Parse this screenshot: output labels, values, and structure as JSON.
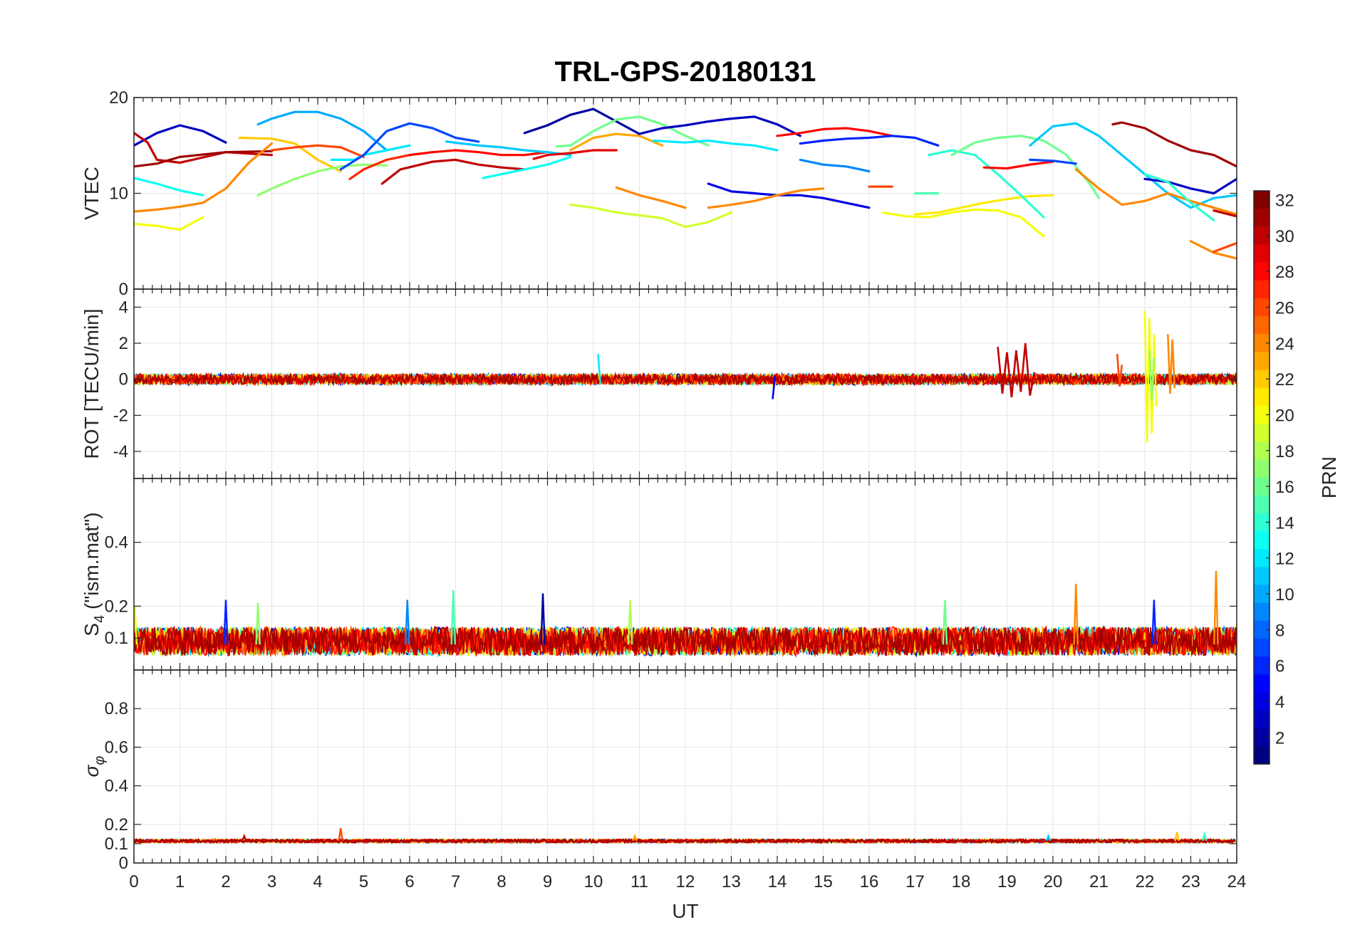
{
  "chart_data": [
    {
      "type": "line",
      "title": "TRL-GPS-20180131",
      "ylabel": "VTEC",
      "xlim": [
        0,
        24
      ],
      "ylim": [
        0,
        20
      ],
      "yticks": [
        0,
        10,
        20
      ],
      "grid": true,
      "series": [
        {
          "prn": 3,
          "x": [
            0,
            0.5,
            1,
            1.5,
            2
          ],
          "y": [
            15,
            16.3,
            17.1,
            16.5,
            15.3
          ]
        },
        {
          "prn": 30,
          "x": [
            0,
            0.3,
            0.5,
            1,
            2,
            3
          ],
          "y": [
            16.3,
            15.3,
            13.5,
            13.2,
            14.3,
            14
          ]
        },
        {
          "prn": 31,
          "x": [
            0,
            0.5,
            1,
            2,
            3
          ],
          "y": [
            12.8,
            13.1,
            13.8,
            14.3,
            14.4
          ]
        },
        {
          "prn": 24,
          "x": [
            0,
            0.5,
            1,
            1.5,
            2,
            2.5,
            3
          ],
          "y": [
            8.1,
            8.3,
            8.6,
            9,
            10.5,
            13.2,
            15.2
          ]
        },
        {
          "prn": 20,
          "x": [
            0,
            0.5,
            1,
            1.5
          ],
          "y": [
            6.8,
            6.6,
            6.2,
            7.5
          ]
        },
        {
          "prn": 13,
          "x": [
            0,
            0.5,
            1,
            1.5
          ],
          "y": [
            11.6,
            11,
            10.3,
            9.8
          ]
        },
        {
          "prn": 10,
          "x": [
            2.7,
            3,
            3.5,
            4,
            4.5,
            5,
            5.5
          ],
          "y": [
            17.2,
            17.8,
            18.5,
            18.5,
            17.8,
            16.5,
            14.5
          ]
        },
        {
          "prn": 22,
          "x": [
            2.3,
            3,
            3.5,
            4,
            4.5
          ],
          "y": [
            15.8,
            15.7,
            15.2,
            13.5,
            12.3
          ]
        },
        {
          "prn": 17,
          "x": [
            2.7,
            3,
            3.5,
            4,
            4.5,
            5,
            5.5
          ],
          "y": [
            9.8,
            10.5,
            11.5,
            12.3,
            12.8,
            13,
            12.9
          ]
        },
        {
          "prn": 26,
          "x": [
            3,
            3.5,
            4,
            4.5,
            5
          ],
          "y": [
            14.5,
            14.8,
            15,
            14.8,
            13.8
          ]
        },
        {
          "prn": 12,
          "x": [
            4.3,
            4.8,
            5,
            5.5,
            6
          ],
          "y": [
            13.5,
            13.5,
            14,
            14.5,
            15
          ]
        },
        {
          "prn": 7,
          "x": [
            4.5,
            5,
            5.5,
            6,
            6.5,
            7,
            7.5
          ],
          "y": [
            12.5,
            14,
            16.5,
            17.3,
            16.8,
            15.8,
            15.4
          ]
        },
        {
          "prn": 27,
          "x": [
            4.7,
            5,
            5.5,
            6,
            6.5
          ],
          "y": [
            11.5,
            12.5,
            13.5,
            14,
            14.3
          ]
        },
        {
          "prn": 30,
          "x": [
            5.4,
            5.8,
            6.5,
            7,
            7.5,
            8,
            8.5
          ],
          "y": [
            11,
            12.5,
            13.3,
            13.5,
            13,
            12.7,
            12.5
          ]
        },
        {
          "prn": 28,
          "x": [
            6,
            6.5,
            7,
            7.5,
            8,
            8.5,
            9
          ],
          "y": [
            14,
            14.3,
            14.5,
            14.3,
            14,
            14,
            14.3
          ]
        },
        {
          "prn": 11,
          "x": [
            6.8,
            7.5,
            8,
            8.5,
            9,
            9.5
          ],
          "y": [
            15.4,
            15,
            14.8,
            14.5,
            14.3,
            14
          ]
        },
        {
          "prn": 2,
          "x": [
            8.5,
            9,
            9.5,
            10,
            10.5,
            11
          ],
          "y": [
            16.3,
            17.1,
            18.2,
            18.8,
            17.5,
            16.2
          ]
        },
        {
          "prn": 13,
          "x": [
            7.6,
            8,
            8.5,
            9,
            9.5
          ],
          "y": [
            11.6,
            12,
            12.5,
            13,
            13.8
          ]
        },
        {
          "prn": 29,
          "x": [
            8.7,
            9,
            9.5,
            10,
            10.5
          ],
          "y": [
            13.6,
            14,
            14.2,
            14.5,
            14.5
          ]
        },
        {
          "prn": 16,
          "x": [
            9.2,
            9.5,
            10,
            10.5,
            11,
            11.5,
            12,
            12.5
          ],
          "y": [
            14.9,
            15,
            16.5,
            17.7,
            18,
            17.2,
            16,
            15
          ]
        },
        {
          "prn": 23,
          "x": [
            9.5,
            10,
            10.5,
            11,
            11.5
          ],
          "y": [
            14.5,
            15.8,
            16.2,
            16,
            15
          ]
        },
        {
          "prn": 19,
          "x": [
            9.5,
            10,
            10.5,
            11,
            11.5,
            12,
            12.5,
            13
          ],
          "y": [
            8.8,
            8.5,
            8,
            7.7,
            7.4,
            6.5,
            7,
            8
          ]
        },
        {
          "prn": 24,
          "x": [
            10.5,
            11,
            11.5,
            12
          ],
          "y": [
            10.6,
            9.8,
            9.2,
            8.5
          ]
        },
        {
          "prn": 3,
          "x": [
            11,
            11.5,
            12,
            12.5,
            13,
            13.5,
            14,
            14.5
          ],
          "y": [
            16.2,
            16.8,
            17.1,
            17.5,
            17.8,
            18,
            17.2,
            16
          ]
        },
        {
          "prn": 12,
          "x": [
            11.3,
            12,
            12.5,
            13,
            13.5,
            14
          ],
          "y": [
            15.5,
            15.3,
            15.5,
            15.2,
            15,
            14.5
          ]
        },
        {
          "prn": 4,
          "x": [
            12.5,
            13,
            13.5,
            14,
            14.5,
            15,
            15.5,
            16
          ],
          "y": [
            11,
            10.2,
            10,
            9.8,
            9.8,
            9.5,
            9,
            8.5
          ]
        },
        {
          "prn": 24,
          "x": [
            12.5,
            13,
            13.5,
            14,
            14.5,
            15
          ],
          "y": [
            8.5,
            8.8,
            9.2,
            9.8,
            10.3,
            10.5
          ]
        },
        {
          "prn": 28,
          "x": [
            14,
            14.5,
            15,
            15.5,
            16,
            16.5
          ],
          "y": [
            16,
            16.3,
            16.7,
            16.8,
            16.5,
            16
          ]
        },
        {
          "prn": 6,
          "x": [
            14.5,
            15,
            15.5,
            16,
            16.5,
            17,
            17.5
          ],
          "y": [
            15.2,
            15.5,
            15.7,
            15.8,
            16,
            15.8,
            15
          ]
        },
        {
          "prn": 9,
          "x": [
            14.5,
            15,
            15.5,
            16
          ],
          "y": [
            13.5,
            13,
            12.8,
            12.3
          ]
        },
        {
          "prn": 26,
          "x": [
            16,
            16.5
          ],
          "y": [
            10.7,
            10.7
          ]
        },
        {
          "prn": 15,
          "x": [
            17,
            17.5
          ],
          "y": [
            10,
            10
          ]
        },
        {
          "prn": 20,
          "x": [
            16.3,
            16.8,
            17.3,
            17.8,
            18.3,
            18.8,
            19.3,
            19.8
          ],
          "y": [
            8,
            7.6,
            7.5,
            8,
            8.3,
            8.2,
            7.5,
            5.5
          ]
        },
        {
          "prn": 21,
          "x": [
            17,
            17.5,
            18,
            18.5,
            19,
            19.5,
            20
          ],
          "y": [
            7.8,
            8,
            8.5,
            9,
            9.4,
            9.7,
            9.8
          ]
        },
        {
          "prn": 14,
          "x": [
            17.3,
            17.8,
            18.3,
            18.8,
            19.3,
            19.8
          ],
          "y": [
            14,
            14.5,
            14,
            12,
            9.8,
            7.5
          ]
        },
        {
          "prn": 16,
          "x": [
            17.8,
            18.3,
            18.8,
            19.3,
            19.8,
            20.3,
            20.8,
            21
          ],
          "y": [
            14,
            15.3,
            15.8,
            16,
            15.5,
            14,
            11,
            9.5
          ]
        },
        {
          "prn": 28,
          "x": [
            18.5,
            19,
            19.5,
            20
          ],
          "y": [
            12.7,
            12.6,
            13,
            13.3
          ]
        },
        {
          "prn": 11,
          "x": [
            19.5,
            20,
            20.5,
            21,
            21.5,
            22,
            22.5,
            23,
            23.5,
            24
          ],
          "y": [
            15,
            17,
            17.3,
            16,
            14,
            12,
            10,
            8.5,
            9.5,
            9.8
          ]
        },
        {
          "prn": 7,
          "x": [
            19.5,
            20,
            20.5
          ],
          "y": [
            13.5,
            13.4,
            13.1
          ]
        },
        {
          "prn": 24,
          "x": [
            20.5,
            21,
            21.5,
            22,
            22.5,
            23,
            23.5,
            24
          ],
          "y": [
            12.5,
            10.5,
            8.8,
            9.2,
            10,
            9.2,
            8.5,
            7.8
          ]
        },
        {
          "prn": 31,
          "x": [
            21.3,
            21.5,
            22,
            22.5,
            23,
            23.5,
            24
          ],
          "y": [
            17.2,
            17.4,
            16.8,
            15.5,
            14.5,
            14,
            12.8
          ]
        },
        {
          "prn": 3,
          "x": [
            22,
            22.5,
            23,
            23.5,
            24
          ],
          "y": [
            11.5,
            11.2,
            10.5,
            10,
            11.5
          ]
        },
        {
          "prn": 14,
          "x": [
            22,
            22.5,
            23,
            23.5
          ],
          "y": [
            12,
            11.2,
            9,
            7.2
          ]
        },
        {
          "prn": 24,
          "x": [
            23,
            23.5,
            24
          ],
          "y": [
            5,
            3.8,
            3.2
          ]
        },
        {
          "prn": 26,
          "x": [
            23.5,
            24
          ],
          "y": [
            3.9,
            4.8
          ]
        },
        {
          "prn": 30,
          "x": [
            23.5,
            24
          ],
          "y": [
            8.2,
            7.6
          ]
        }
      ]
    },
    {
      "type": "line",
      "ylabel": "ROT [TECU/min]",
      "xlim": [
        0,
        24
      ],
      "ylim": [
        -5.5,
        5
      ],
      "yticks": [
        -4,
        -2,
        0,
        2,
        4
      ],
      "grid": true,
      "series": [
        {
          "prn": 30,
          "x": [
            18.8,
            18.9,
            19,
            19.1,
            19.2,
            19.3,
            19.4,
            19.5,
            19.6
          ],
          "y": [
            1.8,
            -0.8,
            1.5,
            -1,
            1.6,
            -0.7,
            2,
            -0.9,
            0.4
          ]
        },
        {
          "prn": 20,
          "x": [
            22,
            22.05,
            22.1,
            22.15,
            22.2,
            22.25
          ],
          "y": [
            3.8,
            -3.5,
            3.4,
            -3,
            2.5,
            -1.5
          ]
        },
        {
          "prn": 24,
          "x": [
            22.5,
            22.55,
            22.6,
            22.65
          ],
          "y": [
            2.5,
            -0.8,
            2.2,
            -0.5
          ]
        },
        {
          "prn": 17,
          "x": [
            22.1,
            22.15,
            22.2
          ],
          "y": [
            1.6,
            -1.2,
            1.2
          ]
        },
        {
          "prn": 26,
          "x": [
            21.4,
            21.45,
            21.5
          ],
          "y": [
            1.4,
            -0.4,
            0.8
          ]
        },
        {
          "prn": 12,
          "x": [
            10.1,
            10.15
          ],
          "y": [
            1.4,
            -0.2
          ]
        },
        {
          "prn": 4,
          "x": [
            13.9,
            13.95
          ],
          "y": [
            -1.1,
            0.2
          ]
        }
      ]
    },
    {
      "type": "line",
      "ylabel": "S4 (\"ism.mat\")",
      "ylabel_main": "S",
      "ylabel_sub": "4",
      "ylabel_rest": " (\"ism.mat\")",
      "xlim": [
        0,
        24
      ],
      "ylim": [
        0,
        0.6
      ],
      "yticks": [
        0.1,
        0.2,
        0.4
      ],
      "grid": true,
      "spikes": [
        {
          "prn": 24,
          "x": 23.55,
          "y": 0.31
        },
        {
          "prn": 24,
          "x": 20.5,
          "y": 0.27
        },
        {
          "prn": 15,
          "x": 6.95,
          "y": 0.25
        },
        {
          "prn": 2,
          "x": 8.9,
          "y": 0.24
        },
        {
          "prn": 6,
          "x": 2,
          "y": 0.22
        },
        {
          "prn": 9,
          "x": 5.95,
          "y": 0.22
        },
        {
          "prn": 18,
          "x": 10.8,
          "y": 0.22
        },
        {
          "prn": 16,
          "x": 17.65,
          "y": 0.22
        },
        {
          "prn": 6,
          "x": 22.2,
          "y": 0.22
        },
        {
          "prn": 20,
          "x": 0.02,
          "y": 0.2
        },
        {
          "prn": 17,
          "x": 2.7,
          "y": 0.21
        }
      ]
    },
    {
      "type": "line",
      "ylabel": "σφ",
      "ylabel_main": "σ",
      "ylabel_sub": "φ",
      "xlabel": "UT",
      "xlim": [
        0,
        24
      ],
      "ylim": [
        0,
        1
      ],
      "yticks": [
        0,
        0.1,
        0.2,
        0.4,
        0.6,
        0.8
      ],
      "xticks": [
        0,
        1,
        2,
        3,
        4,
        5,
        6,
        7,
        8,
        9,
        10,
        11,
        12,
        13,
        14,
        15,
        16,
        17,
        18,
        19,
        20,
        21,
        22,
        23,
        24
      ],
      "grid": true,
      "spikes": [
        {
          "prn": 26,
          "x": 4.5,
          "y": 0.18
        },
        {
          "prn": 30,
          "x": 2.4,
          "y": 0.14
        },
        {
          "prn": 23,
          "x": 10.9,
          "y": 0.14
        },
        {
          "prn": 11,
          "x": 19.9,
          "y": 0.14
        },
        {
          "prn": 22,
          "x": 22.7,
          "y": 0.16
        },
        {
          "prn": 14,
          "x": 23.3,
          "y": 0.15
        }
      ]
    }
  ],
  "colorbar": {
    "label": "PRN",
    "range": [
      1,
      32
    ],
    "ticks": [
      2,
      4,
      6,
      8,
      10,
      12,
      14,
      16,
      18,
      20,
      22,
      24,
      26,
      28,
      30,
      32
    ],
    "colormap": "jet"
  }
}
